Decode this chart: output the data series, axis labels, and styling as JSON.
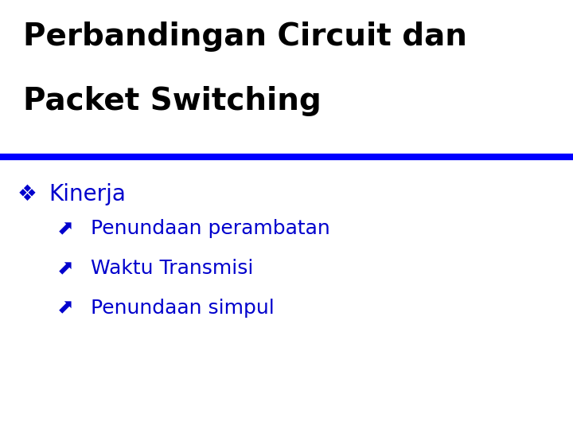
{
  "title_line1": "Perbandingan Circuit dan",
  "title_line2": "Packet Switching",
  "title_color": "#000000",
  "title_fontsize": 28,
  "title_fontweight": "bold",
  "divider_color": "#0000FF",
  "divider_thickness": 6,
  "bullet1_text": "Kinerja",
  "bullet1_color": "#0000CD",
  "bullet1_fontsize": 20,
  "sub_bullets": [
    "Penundaan perambatan",
    "Waktu Transmisi",
    "Penundaan simpul"
  ],
  "sub_bullet_color": "#0000CD",
  "sub_bullet_fontsize": 18,
  "background_color": "#FFFFFF"
}
